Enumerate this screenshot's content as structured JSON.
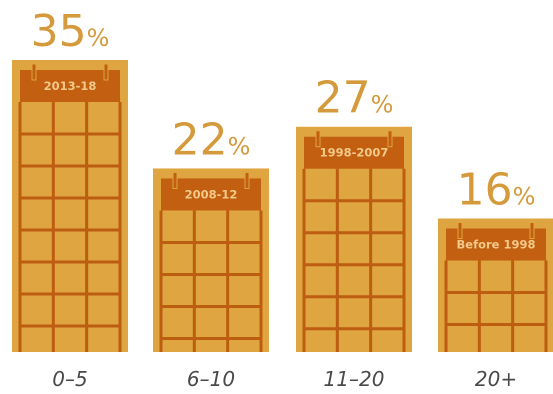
{
  "chart_data": {
    "type": "bar",
    "categories": [
      "0–5",
      "6–10",
      "11–20",
      "20+"
    ],
    "calendar_titles": [
      "2013-18",
      "2008-12",
      "1998-2007",
      "Before 1998"
    ],
    "values": [
      35,
      22,
      27,
      16
    ],
    "value_suffix": "%",
    "title": "",
    "xlabel": "",
    "ylabel": "",
    "ylim": [
      0,
      35
    ],
    "grid": false,
    "legend": "none"
  },
  "colors": {
    "background": "#ffffff",
    "calendar_body": "#dea540",
    "calendar_header": "#c25f10",
    "grid_lines": "#bd5d10",
    "header_text": "#f3c98a",
    "value_text": "#d49a3c",
    "category_text": "#4a4a4a"
  }
}
